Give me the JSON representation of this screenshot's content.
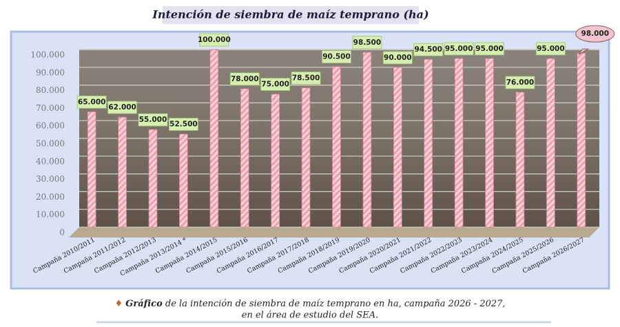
{
  "chart_data": {
    "type": "bar",
    "title": "Intención de siembra de maíz temprano (ha)",
    "categories": [
      "Campaña 2010/2011",
      "Campaña 2011/2012",
      "Campaña 2012/2013",
      "Campaña 2013/2014 *",
      "Campaña 2014/2015",
      "Campaña 2015/2016",
      "Campaña 2016/2017",
      "Campaña 2017/2018",
      "Campaña 2018/2019",
      "Campaña 2019/2020",
      "Campaña 2020/2021",
      "Campaña 2021/2022",
      "Campaña 2022/2023",
      "Campaña 2023/2024",
      "Campaña 2024/2025",
      "Campaña 2025/2026",
      "Campaña 2026/2027"
    ],
    "values": [
      65000,
      62000,
      55000,
      52500,
      100000,
      78000,
      75000,
      78500,
      90500,
      98500,
      90000,
      94500,
      95000,
      95000,
      76000,
      95000,
      98000
    ],
    "value_labels": [
      "65.000",
      "62.000",
      "55.000",
      "52.500",
      "100.000",
      "78.000",
      "75.000",
      "78.500",
      "90.500",
      "98.500",
      "90.000",
      "94.500",
      "95.000",
      "95.000",
      "76.000",
      "95.000",
      "98.000"
    ],
    "color": "#e79aa6",
    "ylim": [
      0,
      100000
    ],
    "yticks": [
      0,
      {
        "value": 10000,
        "label": "10.000"
      },
      {
        "value": 20000,
        "label": "20.000"
      },
      {
        "value": 30000,
        "label": "30.000"
      },
      {
        "value": 40000,
        "label": "40.000"
      },
      {
        "value": 50000,
        "label": "50.000"
      },
      {
        "value": 60000,
        "label": "60.000"
      },
      {
        "value": 70000,
        "label": "70.000"
      },
      {
        "value": 80000,
        "label": "80.000"
      },
      {
        "value": 90000,
        "label": "90.000"
      },
      {
        "value": 100000,
        "label": "100.000"
      }
    ],
    "grid": true,
    "caption_lead": "Gráfico",
    "caption_lines": [
      "de la intención de siembra de maíz temprano en ha, campaña 2026 - 2027,",
      "en el área de estudio del SEA."
    ]
  }
}
